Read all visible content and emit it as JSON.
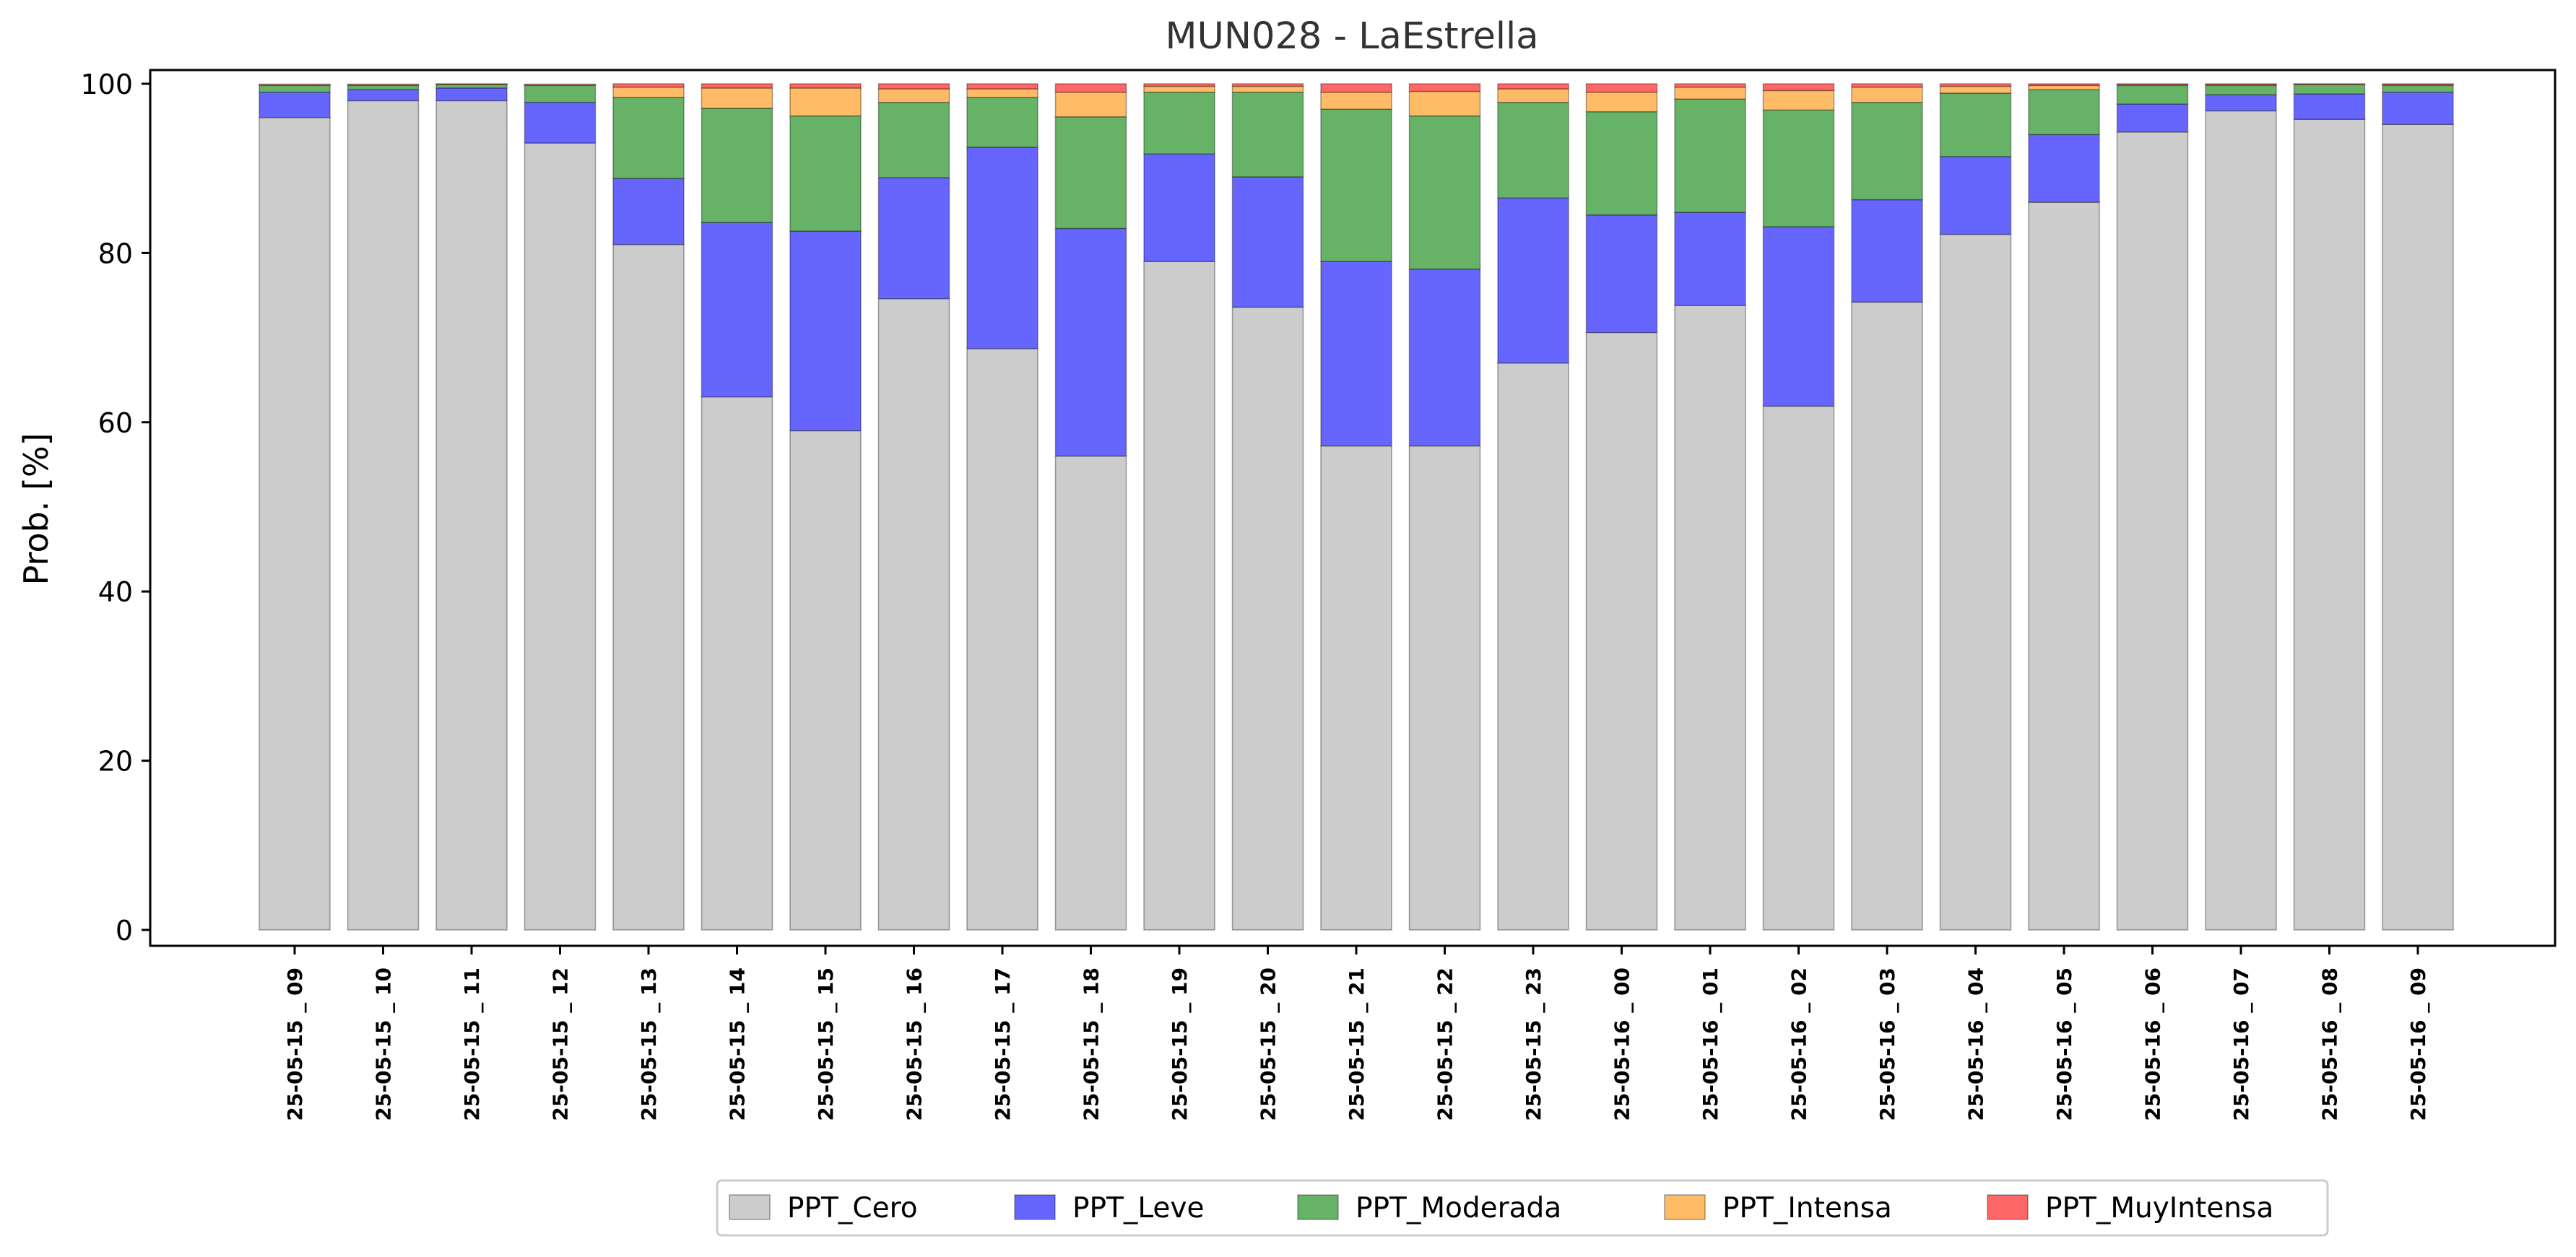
{
  "chart_data": {
    "type": "bar",
    "stacked": true,
    "title": "MUN028 - LaEstrella",
    "xlabel": "",
    "ylabel": "Prob. [%]",
    "ylim": [
      0,
      101.5
    ],
    "yticks": [
      0,
      20,
      40,
      60,
      80,
      100
    ],
    "grid": false,
    "legend_position": "bottom-center",
    "categories": [
      "25-05-15 _ 09",
      "25-05-15 _ 10",
      "25-05-15 _ 11",
      "25-05-15 _ 12",
      "25-05-15 _ 13",
      "25-05-15 _ 14",
      "25-05-15 _ 15",
      "25-05-15 _ 16",
      "25-05-15 _ 17",
      "25-05-15 _ 18",
      "25-05-15 _ 19",
      "25-05-15 _ 20",
      "25-05-15 _ 21",
      "25-05-15 _ 22",
      "25-05-15 _ 23",
      "25-05-16 _ 00",
      "25-05-16 _ 01",
      "25-05-16 _ 02",
      "25-05-16 _ 03",
      "25-05-16 _ 04",
      "25-05-16 _ 05",
      "25-05-16 _ 06",
      "25-05-16 _ 07",
      "25-05-16 _ 08",
      "25-05-16 _ 09"
    ],
    "series": [
      {
        "name": "PPT_Cero",
        "color": "#cccccc",
        "values": [
          96,
          98,
          98,
          93,
          81,
          63,
          59,
          74.6,
          68.7,
          56,
          79,
          73.6,
          57.2,
          57.2,
          67,
          70.6,
          73.8,
          61.9,
          74.2,
          82.2,
          86,
          94.3,
          96.8,
          95.8,
          95.2
        ]
      },
      {
        "name": "PPT_Leve",
        "color": "#6666ff",
        "values": [
          3,
          1.3,
          1.5,
          4.8,
          7.8,
          20.6,
          23.6,
          14.3,
          23.8,
          26.9,
          12.7,
          15.4,
          21.8,
          20.9,
          19.5,
          13.9,
          11.0,
          21.2,
          12.1,
          9.2,
          8,
          3.3,
          1.9,
          3,
          3.8
        ]
      },
      {
        "name": "PPT_Moderada",
        "color": "#66b266",
        "values": [
          0.8,
          0.5,
          0.4,
          2.0,
          9.6,
          13.5,
          13.6,
          8.9,
          5.9,
          13.2,
          7.3,
          10,
          18,
          18.1,
          11.3,
          12.2,
          13.4,
          13.8,
          11.5,
          7.5,
          5.3,
          2.2,
          1.1,
          1.1,
          0.8
        ]
      },
      {
        "name": "PPT_Intensa",
        "color": "#ffbb66",
        "values": [
          0.1,
          0.1,
          0.05,
          0.1,
          1.2,
          2.4,
          3.3,
          1.6,
          1.0,
          2.9,
          0.7,
          0.7,
          2.0,
          2.9,
          1.6,
          2.3,
          1.4,
          2.3,
          1.8,
          0.8,
          0.5,
          0.1,
          0.1,
          0.05,
          0.1
        ]
      },
      {
        "name": "PPT_MuyIntensa",
        "color": "#ff6666",
        "values": [
          0.05,
          0.05,
          0.05,
          0.05,
          0.4,
          0.5,
          0.5,
          0.6,
          0.6,
          1.0,
          0.3,
          0.3,
          1.0,
          0.9,
          0.6,
          1.0,
          0.4,
          0.8,
          0.4,
          0.3,
          0.2,
          0.1,
          0.1,
          0.05,
          0.1
        ]
      }
    ]
  }
}
